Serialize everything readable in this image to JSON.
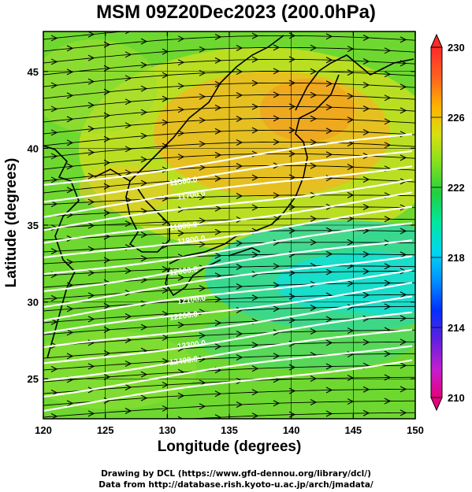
{
  "title": "MSM 09Z20Dec2023 (200.0hPa)",
  "x_axis": {
    "label": "Longitude (degrees)",
    "min": 120,
    "max": 150,
    "ticks": [
      120,
      125,
      130,
      135,
      140,
      145,
      150
    ]
  },
  "y_axis": {
    "label": "Latitude  (degrees)",
    "min": 22.4,
    "max": 47.6,
    "ticks": [
      25,
      30,
      35,
      40,
      45
    ]
  },
  "colorbar": {
    "min": 210,
    "max": 230,
    "tick_labels": [
      "230",
      "226",
      "222",
      "218",
      "214",
      "210"
    ],
    "colors": [
      "#e8007e",
      "#c020d0",
      "#6020e0",
      "#0030ff",
      "#0090ff",
      "#00d8f0",
      "#00e8a0",
      "#20d040",
      "#80e020",
      "#d8e010",
      "#ffb000",
      "#ff6020",
      "#ff2a2a"
    ]
  },
  "contour_labels": [
    "11600.0",
    "11700.0",
    "11800.0",
    "11900.0",
    "12000.0",
    "12100.0",
    "12200.0",
    "12300.0",
    "12400.0"
  ],
  "credits": {
    "line1": "Drawing by DCL (https://www.gfd-dennou.org/library/dcl/)",
    "line2": "Data from http://database.rish.kyoto-u.ac.jp/arch/jmadata/"
  }
}
